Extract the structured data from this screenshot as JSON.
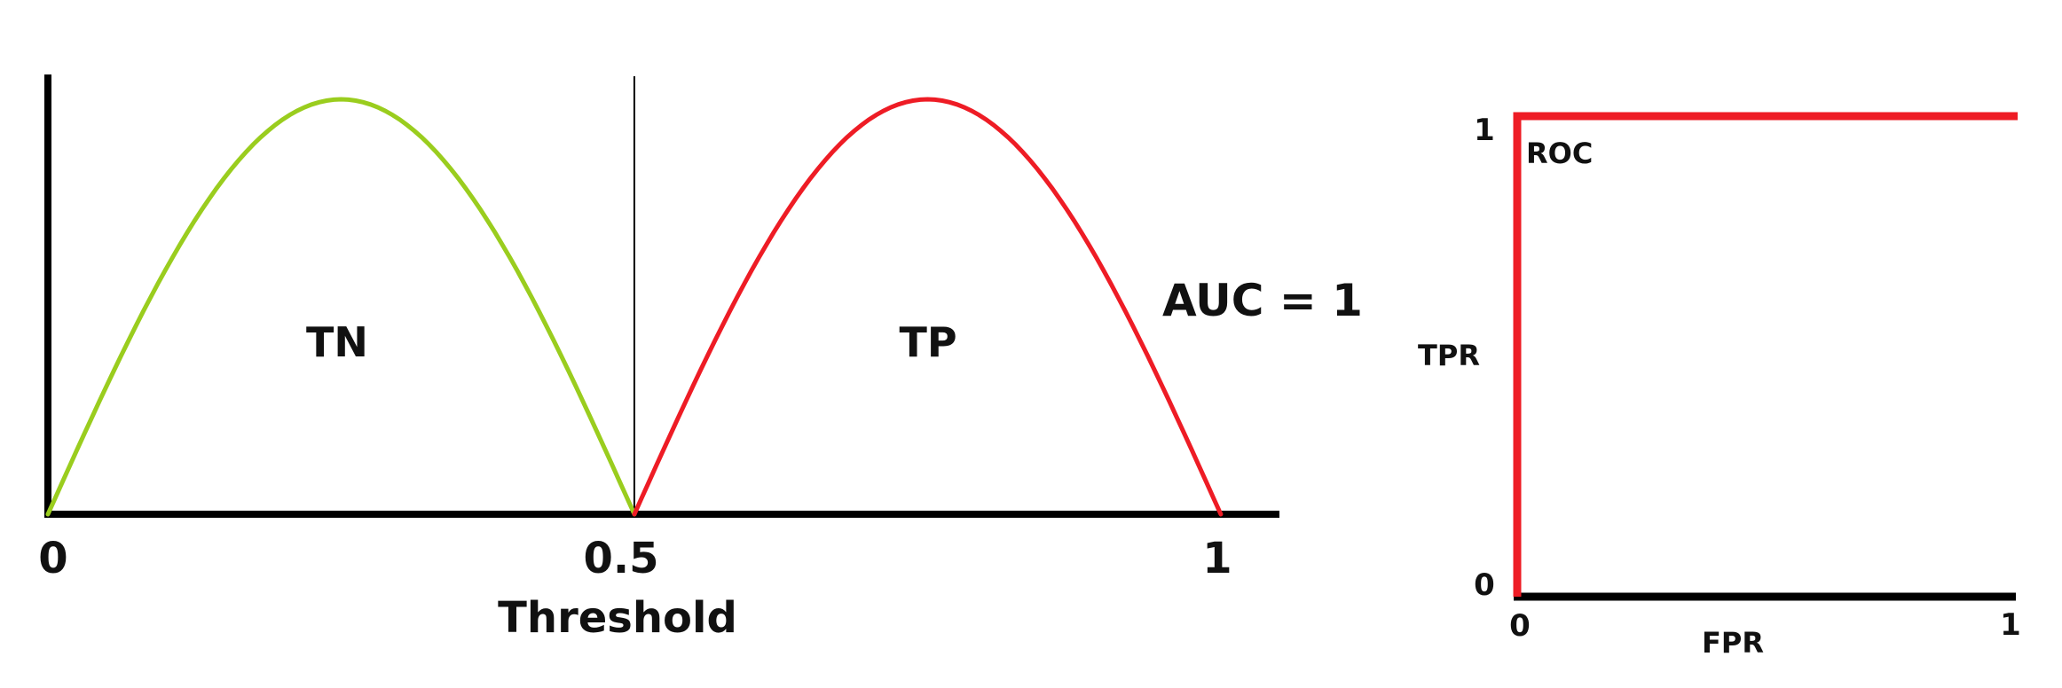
{
  "colors": {
    "negative_curve": "#9ACD1E",
    "positive_curve": "#EE1C25",
    "roc_curve": "#EE1C25",
    "axis": "#000000"
  },
  "chart_data": [
    {
      "type": "line",
      "title": "",
      "xlabel": "Threshold",
      "ylabel": "",
      "xlim": [
        0,
        1.05
      ],
      "ylim": [
        0,
        1.03
      ],
      "x_ticks": [
        "0",
        "0.5",
        "1"
      ],
      "threshold_line_x": 0.5,
      "annotation": "AUC = 1",
      "series": [
        {
          "name": "TN",
          "color": "#9ACD1E",
          "x": [
            0.0,
            0.05,
            0.1,
            0.15,
            0.2,
            0.25,
            0.3,
            0.35,
            0.4,
            0.45,
            0.5
          ],
          "y": [
            0.0,
            0.31,
            0.59,
            0.81,
            0.95,
            1.0,
            0.95,
            0.81,
            0.59,
            0.31,
            0.0
          ]
        },
        {
          "name": "TP",
          "color": "#EE1C25",
          "x": [
            0.5,
            0.55,
            0.6,
            0.65,
            0.7,
            0.75,
            0.8,
            0.85,
            0.9,
            0.95,
            1.0
          ],
          "y": [
            0.0,
            0.31,
            0.59,
            0.81,
            0.95,
            1.0,
            0.95,
            0.81,
            0.59,
            0.31,
            0.0
          ]
        }
      ]
    },
    {
      "type": "line",
      "title": "",
      "xlabel": "FPR",
      "ylabel": "TPR",
      "xlim": [
        0,
        1
      ],
      "ylim": [
        0,
        1
      ],
      "x_ticks": [
        "0",
        "1"
      ],
      "y_ticks": [
        "0",
        "1"
      ],
      "series": [
        {
          "name": "ROC",
          "color": "#EE1C25",
          "x": [
            0,
            0,
            1
          ],
          "y": [
            0,
            1,
            1
          ]
        }
      ]
    }
  ]
}
